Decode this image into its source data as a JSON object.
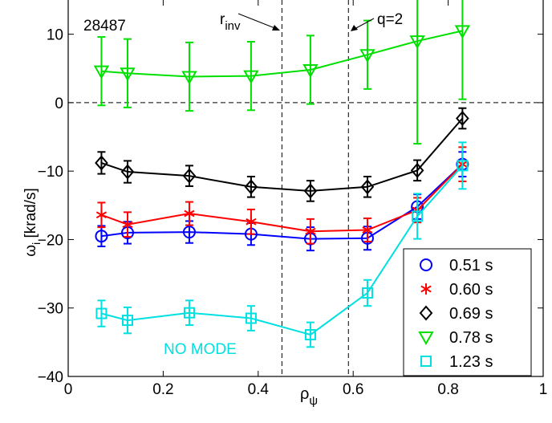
{
  "chart_data": {
    "type": "line",
    "title": "",
    "xlabel": "ρ",
    "xlabel_sub": "ψ",
    "ylabel": "ω",
    "ylabel_sub": "i",
    "ylabel_unit": " [krad/s]",
    "xlim": [
      0,
      1
    ],
    "ylim": [
      -40,
      15
    ],
    "xticks": [
      0,
      0.2,
      0.4,
      0.6,
      0.8,
      1
    ],
    "xtick_labels": [
      "0",
      "0.2",
      "0.4",
      "0.6",
      "0.8",
      "1"
    ],
    "yticks": [
      -40,
      -30,
      -20,
      -10,
      0,
      10
    ],
    "ytick_labels": [
      "−40",
      "−30",
      "−20",
      "−10",
      "0",
      "10"
    ],
    "grid": false,
    "legend_position": "bottom-right",
    "reference_lines": [
      {
        "axis": "y",
        "value": 0,
        "style": "dashed"
      },
      {
        "axis": "x",
        "value": 0.45,
        "style": "dashed"
      },
      {
        "axis": "x",
        "value": 0.59,
        "style": "dashed"
      }
    ],
    "annotations": {
      "shot": "28487",
      "rinv_main": "r",
      "rinv_sub": "inv",
      "q2": "q=2",
      "nomode": "NO MODE"
    },
    "series": [
      {
        "name": "0.51 s",
        "color": "#0000ff",
        "marker": "circle",
        "x": [
          0.07,
          0.125,
          0.255,
          0.385,
          0.51,
          0.63,
          0.735,
          0.83
        ],
        "y": [
          -19.5,
          -19.0,
          -18.9,
          -19.2,
          -19.9,
          -19.8,
          -15.2,
          -9.0
        ],
        "err": [
          1.5,
          1.6,
          1.6,
          1.6,
          1.7,
          1.7,
          1.8,
          1.8
        ]
      },
      {
        "name": "0.60 s",
        "color": "#ff0000",
        "marker": "asterisk",
        "x": [
          0.07,
          0.125,
          0.255,
          0.385,
          0.51,
          0.63,
          0.735,
          0.83
        ],
        "y": [
          -16.4,
          -17.8,
          -16.2,
          -17.4,
          -18.8,
          -18.6,
          -15.7,
          -9.0
        ],
        "err": [
          1.8,
          1.8,
          1.7,
          1.8,
          1.8,
          1.7,
          1.8,
          2.5
        ]
      },
      {
        "name": "0.69 s",
        "color": "#000000",
        "marker": "diamond",
        "x": [
          0.07,
          0.125,
          0.255,
          0.385,
          0.51,
          0.63,
          0.735,
          0.83
        ],
        "y": [
          -8.8,
          -10.1,
          -10.7,
          -12.3,
          -12.9,
          -12.3,
          -9.9,
          -2.3
        ],
        "err": [
          1.6,
          1.6,
          1.5,
          1.5,
          1.5,
          1.5,
          1.5,
          1.5
        ]
      },
      {
        "name": "0.78 s",
        "color": "#00e000",
        "marker": "triangle-down",
        "x": [
          0.07,
          0.125,
          0.255,
          0.385,
          0.51,
          0.63,
          0.735,
          0.83
        ],
        "y": [
          4.6,
          4.3,
          3.8,
          3.9,
          4.8,
          7.0,
          9.0,
          10.5
        ],
        "err": [
          5.0,
          5.0,
          5.0,
          5.0,
          5.0,
          5.0,
          15.0,
          10.0
        ]
      },
      {
        "name": "1.23 s",
        "color": "#00e0e0",
        "marker": "square",
        "x": [
          0.07,
          0.125,
          0.255,
          0.385,
          0.51,
          0.63,
          0.735,
          0.83
        ],
        "y": [
          -30.8,
          -31.8,
          -30.7,
          -31.5,
          -33.9,
          -27.8,
          -16.6,
          -9.2
        ],
        "err": [
          1.9,
          1.9,
          1.8,
          1.8,
          1.8,
          1.9,
          3.3,
          3.4
        ]
      }
    ]
  }
}
